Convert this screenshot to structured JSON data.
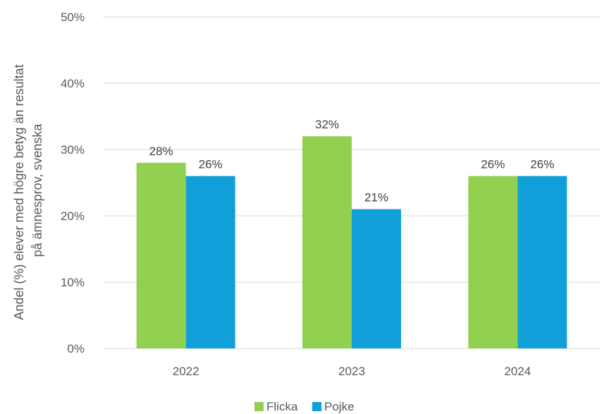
{
  "chart_data": {
    "type": "bar",
    "categories": [
      "2022",
      "2023",
      "2024"
    ],
    "series": [
      {
        "name": "Flicka",
        "values": [
          28,
          32,
          26
        ],
        "color": "#92d050"
      },
      {
        "name": "Pojke",
        "values": [
          26,
          21,
          26
        ],
        "color": "#109fd8"
      }
    ],
    "data_labels": [
      [
        "28%",
        "32%",
        "26%"
      ],
      [
        "26%",
        "21%",
        "26%"
      ]
    ],
    "ylabel_lines": [
      "Andel (%) elever med högre betyg än resultat",
      "på ämnesprov, svenska"
    ],
    "ylim": [
      0,
      50
    ],
    "yticks": [
      0,
      10,
      20,
      30,
      40,
      50
    ],
    "ytick_labels": [
      "0%",
      "10%",
      "20%",
      "30%",
      "40%",
      "50%"
    ],
    "grid": true,
    "legend_position": "bottom"
  }
}
